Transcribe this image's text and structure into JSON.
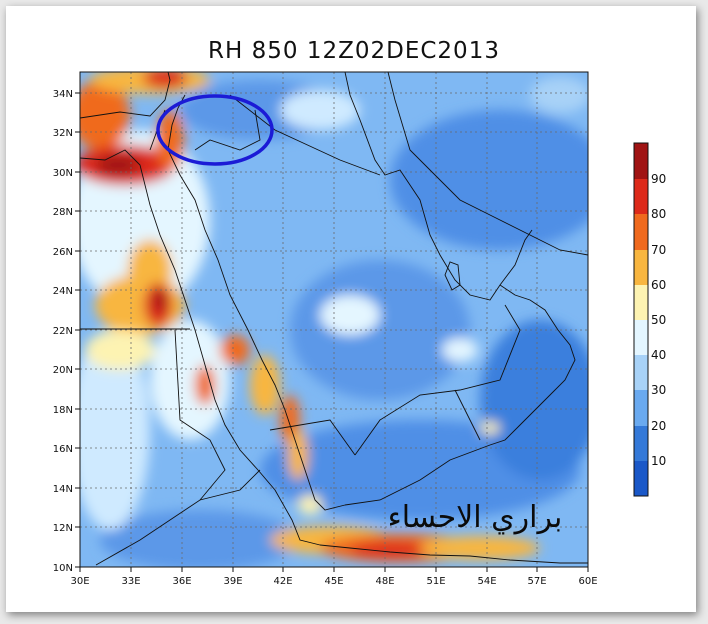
{
  "title": "RH 850 12Z02DEC2013",
  "lat_labels": [
    "34N",
    "32N",
    "30N",
    "28N",
    "26N",
    "24N",
    "22N",
    "20N",
    "18N",
    "16N",
    "14N",
    "12N",
    "10N"
  ],
  "lon_labels": [
    "30E",
    "33E",
    "36E",
    "39E",
    "42E",
    "45E",
    "48E",
    "51E",
    "54E",
    "57E",
    "60E"
  ],
  "colorbar": {
    "labels": [
      "90",
      "80",
      "70",
      "60",
      "50",
      "40",
      "30",
      "20",
      "10"
    ],
    "colors": [
      "#a01414",
      "#dd2a1a",
      "#f06a1e",
      "#f8b640",
      "#fdf3b2",
      "#e4f6ff",
      "#a8d2f7",
      "#6aaaf0",
      "#3479d8",
      "#1a58c8"
    ]
  },
  "annotation": {
    "shape": "ellipse",
    "color": "#1b1bd6"
  },
  "watermark": "براري الاحساء"
}
